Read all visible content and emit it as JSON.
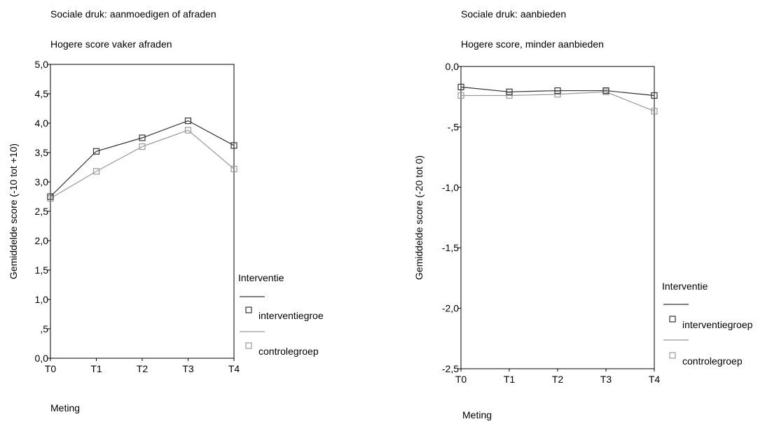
{
  "chart_data": [
    {
      "type": "line",
      "title": "Sociale druk: aanmoedigen of afraden",
      "subtitle": "Hogere score vaker afraden",
      "xlabel": "Meting",
      "ylabel": "Gemiddelde score (-10 tot +10)",
      "categories": [
        "T0",
        "T1",
        "T2",
        "T3",
        "T4"
      ],
      "ylim": [
        0,
        5
      ],
      "yticks": [
        "0,0",
        ",5",
        "1,0",
        "1,5",
        "2,0",
        "2,5",
        "3,0",
        "3,5",
        "4,0",
        "4,5",
        "5,0"
      ],
      "legend_title": "Interventie",
      "legend_position": "right",
      "grid": false,
      "series": [
        {
          "name": "interventiegroe",
          "color": "#333333",
          "values": [
            2.75,
            3.52,
            3.75,
            4.04,
            3.62
          ]
        },
        {
          "name": "controlegroep",
          "color": "#999999",
          "values": [
            2.72,
            3.18,
            3.6,
            3.88,
            3.22
          ]
        }
      ]
    },
    {
      "type": "line",
      "title": "Sociale druk: aanbieden",
      "subtitle": "Hogere score, minder aanbieden",
      "xlabel": "Meting",
      "ylabel": "Gemiddelde score (-20 tot 0)",
      "categories": [
        "T0",
        "T1",
        "T2",
        "T3",
        "T4"
      ],
      "ylim": [
        -2.5,
        0
      ],
      "yticks": [
        "-2,5",
        "-2,0",
        "-1,5",
        "-1,0",
        "-,5",
        "0,0"
      ],
      "legend_title": "Interventie",
      "legend_position": "right",
      "grid": false,
      "series": [
        {
          "name": "interventiegroep",
          "color": "#333333",
          "values": [
            -0.17,
            -0.21,
            -0.2,
            -0.2,
            -0.24
          ]
        },
        {
          "name": "controlegroep",
          "color": "#999999",
          "values": [
            -0.24,
            -0.24,
            -0.23,
            -0.21,
            -0.37
          ]
        }
      ]
    }
  ]
}
